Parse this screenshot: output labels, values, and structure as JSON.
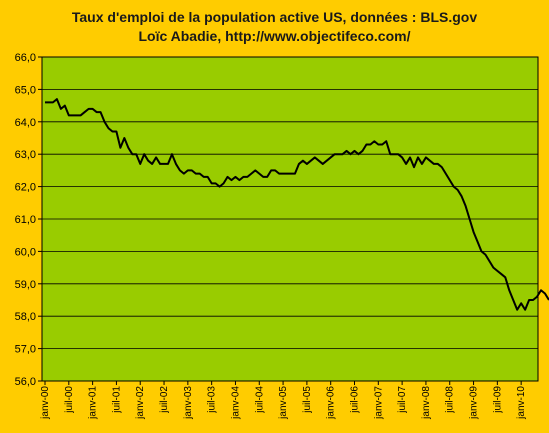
{
  "chart_data": {
    "type": "line",
    "title": "Taux d'emploi de la population active US, données : BLS.gov",
    "subtitle": "Loïc Abadie, http://www.objectifeco.com/",
    "xlabel": "",
    "ylabel": "",
    "ylim": [
      56.0,
      66.0
    ],
    "y_ticks": [
      "56,0",
      "57,0",
      "58,0",
      "59,0",
      "60,0",
      "61,0",
      "62,0",
      "63,0",
      "64,0",
      "65,0",
      "66,0"
    ],
    "x_tick_labels": [
      "janv-00",
      "juil-00",
      "janv-01",
      "juil-01",
      "janv-02",
      "juil-02",
      "janv-03",
      "juil-03",
      "janv-04",
      "juil-04",
      "janv-05",
      "juil-05",
      "janv-06",
      "juil-06",
      "janv-07",
      "juil-07",
      "janv-08",
      "juil-08",
      "janv-09",
      "juil-09",
      "janv-10"
    ],
    "x_start": "janv-00",
    "grid": true,
    "plot_background": "#99CC00",
    "page_background": "#FFCC00",
    "line_color": "#000000",
    "series": [
      {
        "values": [
          64.6,
          64.6,
          64.6,
          64.7,
          64.4,
          64.5,
          64.2,
          64.2,
          64.2,
          64.2,
          64.3,
          64.4,
          64.4,
          64.3,
          64.3,
          64.0,
          63.8,
          63.7,
          63.7,
          63.2,
          63.5,
          63.2,
          63.0,
          63.0,
          62.7,
          63.0,
          62.8,
          62.7,
          62.9,
          62.7,
          62.7,
          62.7,
          63.0,
          62.7,
          62.5,
          62.4,
          62.5,
          62.5,
          62.4,
          62.4,
          62.3,
          62.3,
          62.1,
          62.1,
          62.0,
          62.1,
          62.3,
          62.2,
          62.3,
          62.2,
          62.3,
          62.3,
          62.4,
          62.5,
          62.4,
          62.3,
          62.3,
          62.5,
          62.5,
          62.4,
          62.4,
          62.4,
          62.4,
          62.4,
          62.7,
          62.8,
          62.7,
          62.8,
          62.9,
          62.8,
          62.7,
          62.8,
          62.9,
          63.0,
          63.0,
          63.0,
          63.1,
          63.0,
          63.1,
          63.0,
          63.1,
          63.3,
          63.3,
          63.4,
          63.3,
          63.3,
          63.4,
          63.0,
          63.0,
          63.0,
          62.9,
          62.7,
          62.9,
          62.6,
          62.9,
          62.7,
          62.9,
          62.8,
          62.7,
          62.7,
          62.6,
          62.4,
          62.2,
          62.0,
          61.9,
          61.7,
          61.4,
          61.0,
          60.6,
          60.3,
          60.0,
          59.9,
          59.7,
          59.5,
          59.4,
          59.3,
          59.2,
          58.8,
          58.5,
          58.2,
          58.4,
          58.2,
          58.5,
          58.5,
          58.6,
          58.8,
          58.7,
          58.5
        ]
      }
    ]
  }
}
